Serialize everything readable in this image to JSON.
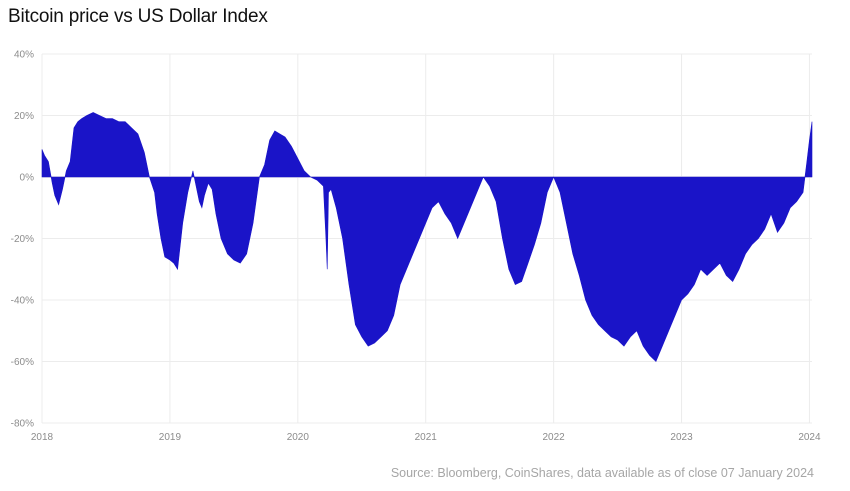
{
  "title": "Bitcoin price vs US Dollar Index",
  "source": "Source: Bloomberg, CoinShares, data available as of close 07 January 2024",
  "chart_data": {
    "type": "area",
    "title": "Bitcoin price vs US Dollar Index",
    "xlabel": "",
    "ylabel": "",
    "xlim": [
      2018.0,
      2024.02
    ],
    "ylim": [
      -80,
      40
    ],
    "y_ticks": [
      "40%",
      "20%",
      "0%",
      "-20%",
      "-40%",
      "-60%",
      "-80%"
    ],
    "y_tick_values": [
      40,
      20,
      0,
      -20,
      -40,
      -60,
      -80
    ],
    "x_ticks": [
      "2018",
      "2019",
      "2020",
      "2021",
      "2022",
      "2023",
      "2024"
    ],
    "x_tick_values": [
      2018,
      2019,
      2020,
      2021,
      2022,
      2023,
      2024
    ],
    "grid": true,
    "color": "#1a14c8",
    "series": [
      {
        "x": [
          2018.0,
          2018.02,
          2018.05,
          2018.08,
          2018.1,
          2018.13,
          2018.16,
          2018.19,
          2018.22,
          2018.25,
          2018.28,
          2018.31,
          2018.35,
          2018.4,
          2018.45,
          2018.5,
          2018.55,
          2018.6,
          2018.65,
          2018.7,
          2018.75,
          2018.8,
          2018.84,
          2018.88,
          2018.9,
          2018.93,
          2018.96,
          2019.0,
          2019.03,
          2019.06,
          2019.1,
          2019.14,
          2019.18,
          2019.2,
          2019.23,
          2019.25,
          2019.27,
          2019.3,
          2019.33,
          2019.36,
          2019.4,
          2019.45,
          2019.5,
          2019.55,
          2019.6,
          2019.65,
          2019.7,
          2019.74,
          2019.78,
          2019.82,
          2019.86,
          2019.9,
          2019.95,
          2020.0,
          2020.05,
          2020.1,
          2020.15,
          2020.2,
          2020.22,
          2020.23,
          2020.24,
          2020.26,
          2020.3,
          2020.35,
          2020.4,
          2020.45,
          2020.5,
          2020.55,
          2020.6,
          2020.65,
          2020.7,
          2020.75,
          2020.8,
          2020.85,
          2020.9,
          2020.95,
          2021.0,
          2021.05,
          2021.1,
          2021.15,
          2021.2,
          2021.25,
          2021.3,
          2021.35,
          2021.4,
          2021.45,
          2021.5,
          2021.55,
          2021.6,
          2021.65,
          2021.7,
          2021.75,
          2021.8,
          2021.85,
          2021.9,
          2021.95,
          2022.0,
          2022.05,
          2022.1,
          2022.15,
          2022.2,
          2022.25,
          2022.3,
          2022.35,
          2022.4,
          2022.45,
          2022.5,
          2022.55,
          2022.6,
          2022.65,
          2022.7,
          2022.75,
          2022.8,
          2022.85,
          2022.9,
          2022.95,
          2023.0,
          2023.05,
          2023.1,
          2023.15,
          2023.2,
          2023.25,
          2023.3,
          2023.35,
          2023.4,
          2023.45,
          2023.5,
          2023.55,
          2023.6,
          2023.65,
          2023.7,
          2023.75,
          2023.8,
          2023.85,
          2023.9,
          2023.95,
          2023.98,
          2024.0,
          2024.02
        ],
        "values": [
          9,
          7,
          5,
          -2,
          -6,
          -9,
          -4,
          2,
          5,
          16,
          18,
          19,
          20,
          21,
          20,
          19,
          19,
          18,
          18,
          16,
          14,
          8,
          0,
          -5,
          -12,
          -20,
          -26,
          -27,
          -28,
          -30,
          -15,
          -5,
          2,
          -2,
          -8,
          -10,
          -6,
          -2,
          -4,
          -12,
          -20,
          -25,
          -27,
          -28,
          -25,
          -15,
          0,
          4,
          12,
          15,
          14,
          13,
          10,
          6,
          2,
          0,
          -1,
          -3,
          -20,
          -30,
          -5,
          -4,
          -10,
          -20,
          -35,
          -48,
          -52,
          -55,
          -54,
          -52,
          -50,
          -45,
          -35,
          -30,
          -25,
          -20,
          -15,
          -10,
          -8,
          -12,
          -15,
          -20,
          -15,
          -10,
          -5,
          0,
          -3,
          -8,
          -20,
          -30,
          -35,
          -34,
          -28,
          -22,
          -15,
          -5,
          0,
          -5,
          -15,
          -25,
          -32,
          -40,
          -45,
          -48,
          -50,
          -52,
          -53,
          -55,
          -52,
          -50,
          -55,
          -58,
          -60,
          -55,
          -50,
          -45,
          -40,
          -38,
          -35,
          -30,
          -32,
          -30,
          -28,
          -32,
          -34,
          -30,
          -25,
          -22,
          -20,
          -17,
          -12,
          -18,
          -15,
          -10,
          -8,
          -5,
          5,
          12,
          18
        ]
      }
    ]
  }
}
